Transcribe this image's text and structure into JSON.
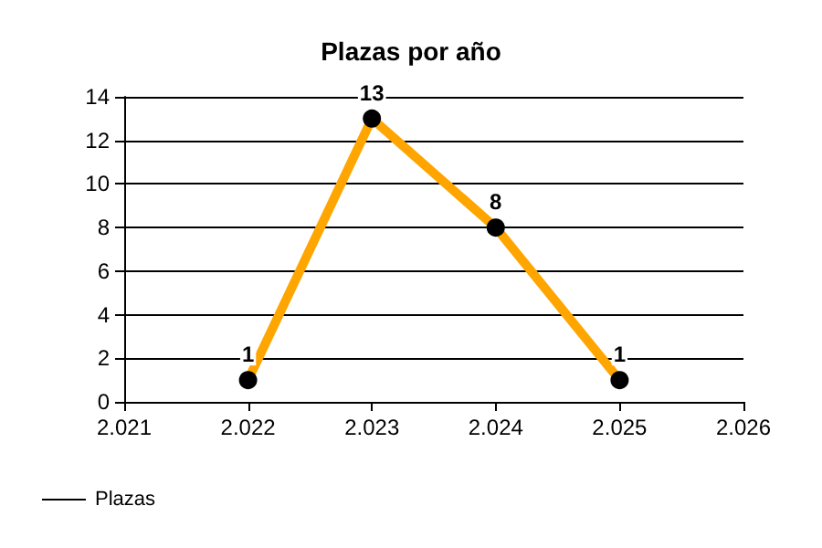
{
  "chart_data": {
    "type": "line",
    "title": "Plazas por año",
    "x": [
      2022,
      2023,
      2024,
      2025
    ],
    "series": [
      {
        "name": "Plazas",
        "color": "#ffa500",
        "values": [
          1,
          13,
          8,
          1
        ]
      }
    ],
    "xlim": [
      2021,
      2026
    ],
    "xticks": [
      {
        "value": 2021,
        "label": "2.021"
      },
      {
        "value": 2022,
        "label": "2.022"
      },
      {
        "value": 2023,
        "label": "2.023"
      },
      {
        "value": 2024,
        "label": "2.024"
      },
      {
        "value": 2025,
        "label": "2.025"
      },
      {
        "value": 2026,
        "label": "2.026"
      }
    ],
    "ylim": [
      0,
      14
    ],
    "yticks": [
      0,
      2,
      4,
      6,
      8,
      10,
      12,
      14
    ],
    "grid": "y",
    "legend": "bottom left",
    "marker": "circle",
    "line_style": "solid",
    "data_labels": true
  }
}
